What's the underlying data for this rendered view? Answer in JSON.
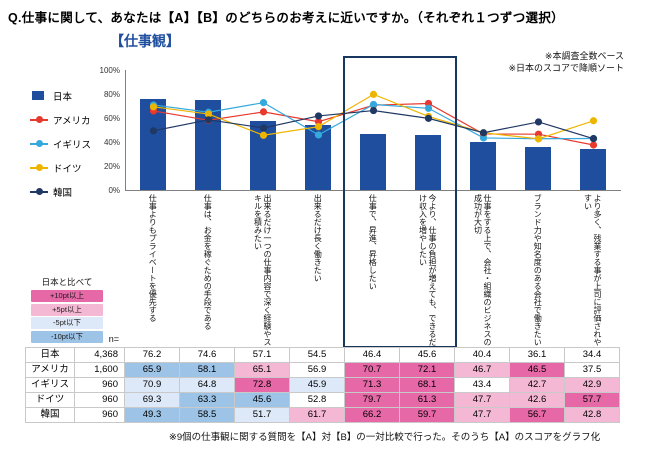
{
  "title": "Q.仕事に関して、あなたは【A】【B】のどちらのお考えに近いですか。（それぞれ１つずつ選択）",
  "subtitle": "【仕事観】",
  "notes": [
    "※本調査全数ベース",
    "※日本のスコアで降順ソート"
  ],
  "footnote": "※9個の仕事観に関する質問を【A】対【B】の一対比較で行った。そのうち【A】のスコアをグラフ化",
  "compare_legend": {
    "title": "日本と比べて",
    "items": [
      {
        "label": "+10pt以上",
        "color": "#e668a7"
      },
      {
        "label": "+5pt以上",
        "color": "#f5b8d4"
      },
      {
        "label": "-5pt以下",
        "color": "#dde9f8"
      },
      {
        "label": "-10pt以下",
        "color": "#9dc3e6"
      }
    ]
  },
  "chart_data": {
    "type": "bar+line",
    "title": "【仕事観】",
    "ylim": [
      0,
      100
    ],
    "y_ticks": [
      "0%",
      "20%",
      "40%",
      "60%",
      "80%",
      "100%"
    ],
    "grid": false,
    "legend_position": "left",
    "categories": [
      "仕事よりもプライベートを優先する",
      "仕事は、お金を稼ぐための手段である",
      "出来るだけ一つの仕事内容で深く経験やスキルを積みたい",
      "出来るだけ長く働きたい",
      "仕事で、昇進、昇格したい",
      "今より、仕事の負担が増えても、できるだけ収入を増やしたい",
      "仕事をする上で、会社・組織のビジネスの成功が大切",
      "ブランド力や知名度のある会社で働きたい",
      "より多く、残業する事が上司に評価されやすい"
    ],
    "series": [
      {
        "name": "日本",
        "style": "bar",
        "color": "#1f4e9f",
        "values": [
          76.2,
          74.6,
          57.1,
          54.5,
          46.4,
          45.6,
          40.4,
          36.1,
          34.4
        ]
      },
      {
        "name": "アメリカ",
        "style": "line",
        "color": "#e8392f",
        "values": [
          65.9,
          58.1,
          65.1,
          56.9,
          70.7,
          72.1,
          46.7,
          46.5,
          37.5
        ]
      },
      {
        "name": "イギリス",
        "style": "line",
        "color": "#35a8dc",
        "values": [
          70.9,
          64.8,
          72.8,
          45.9,
          71.3,
          68.1,
          43.4,
          42.7,
          42.9
        ]
      },
      {
        "name": "ドイツ",
        "style": "line",
        "color": "#eeb500",
        "values": [
          69.3,
          63.3,
          45.6,
          52.8,
          79.7,
          61.3,
          47.7,
          42.6,
          57.7
        ]
      },
      {
        "name": "韓国",
        "style": "line",
        "color": "#203864",
        "values": [
          49.3,
          58.5,
          51.7,
          61.7,
          66.2,
          59.7,
          47.7,
          56.7,
          42.8
        ]
      }
    ],
    "highlighted_category_indexes": [
      4,
      5
    ]
  },
  "table": {
    "n_header": "n=",
    "rows": [
      {
        "country": "日本",
        "n": "4,368",
        "values": [
          76.2,
          74.6,
          57.1,
          54.5,
          46.4,
          45.6,
          40.4,
          36.1,
          34.4
        ]
      },
      {
        "country": "アメリカ",
        "n": "1,600",
        "values": [
          65.9,
          58.1,
          65.1,
          56.9,
          70.7,
          72.1,
          46.7,
          46.5,
          37.5
        ]
      },
      {
        "country": "イギリス",
        "n": "960",
        "values": [
          70.9,
          64.8,
          72.8,
          45.9,
          71.3,
          68.1,
          43.4,
          42.7,
          42.9
        ]
      },
      {
        "country": "ドイツ",
        "n": "960",
        "values": [
          69.3,
          63.3,
          45.6,
          52.8,
          79.7,
          61.3,
          47.7,
          42.6,
          57.7
        ]
      },
      {
        "country": "韓国",
        "n": "960",
        "values": [
          49.3,
          58.5,
          51.7,
          61.7,
          66.2,
          59.7,
          47.7,
          56.7,
          42.8
        ]
      }
    ]
  }
}
